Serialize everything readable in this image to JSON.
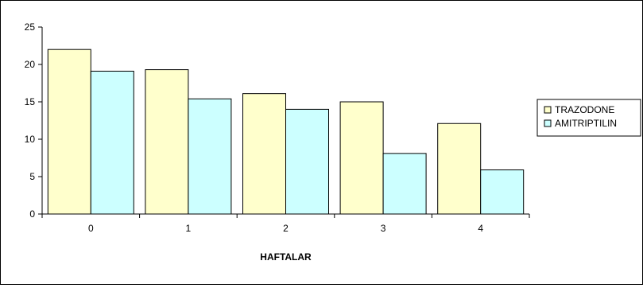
{
  "chart_data": {
    "type": "bar",
    "categories": [
      "0",
      "1",
      "2",
      "3",
      "4"
    ],
    "series": [
      {
        "name": "TRAZODONE",
        "values": [
          22,
          19.3,
          16.1,
          15,
          12.1
        ],
        "color": "#FFFFCC"
      },
      {
        "name": "AMITRIPTILIN",
        "values": [
          19.1,
          15.4,
          14,
          8.1,
          5.9
        ],
        "color": "#CCFFFF"
      }
    ],
    "xlabel": "HAFTALAR",
    "ylabel": "",
    "ylim": [
      0,
      25
    ],
    "yticks": [
      0,
      5,
      10,
      15,
      20,
      25
    ],
    "grid": false,
    "legend_position": "right"
  }
}
